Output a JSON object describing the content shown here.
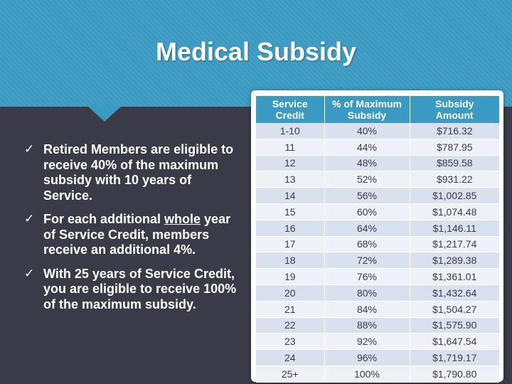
{
  "title": "Medical Subsidy",
  "bullets": [
    {
      "text": "Retired Members are eligible to receive 40% of the maximum subsidy with 10 years of Service."
    },
    {
      "before": "For each additional ",
      "underlined": "whole",
      "after": " year of Service Credit, members receive an additional 4%."
    },
    {
      "text": "With 25 years of Service Credit, you are eligible to receive 100% of the maximum subsidy."
    }
  ],
  "bullet_mark": "✓",
  "table": {
    "headers": [
      [
        "Service",
        "Credit"
      ],
      [
        "% of Maximum",
        "Subsidy"
      ],
      [
        "Subsidy",
        "Amount"
      ]
    ],
    "rows": [
      [
        "1-10",
        "40%",
        "$716.32"
      ],
      [
        "11",
        "44%",
        "$787.95"
      ],
      [
        "12",
        "48%",
        "$859.58"
      ],
      [
        "13",
        "52%",
        "$931.22"
      ],
      [
        "14",
        "56%",
        "$1,002.85"
      ],
      [
        "15",
        "60%",
        "$1,074.48"
      ],
      [
        "16",
        "64%",
        "$1,146.11"
      ],
      [
        "17",
        "68%",
        "$1,217.74"
      ],
      [
        "18",
        "72%",
        "$1,289.38"
      ],
      [
        "19",
        "76%",
        "$1,361.01"
      ],
      [
        "20",
        "80%",
        "$1,432.64"
      ],
      [
        "21",
        "84%",
        "$1,504.27"
      ],
      [
        "22",
        "88%",
        "$1,575.90"
      ],
      [
        "23",
        "92%",
        "$1,647.54"
      ],
      [
        "24",
        "96%",
        "$1,719.17"
      ],
      [
        "25+",
        "100%",
        "$1,790.80"
      ]
    ]
  },
  "colors": {
    "header_blue": "#3a9ac2",
    "slide_background": "#3b3a48",
    "row_odd": "#d9e1ef",
    "row_even": "#eef1f7"
  }
}
